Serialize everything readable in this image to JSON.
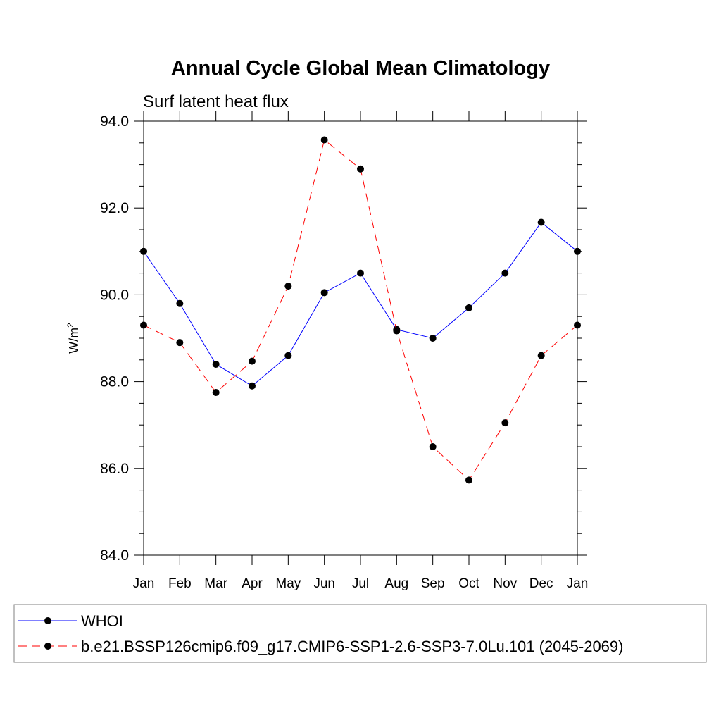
{
  "chart_data": {
    "type": "line",
    "title": "Annual Cycle Global Mean Climatology",
    "subtitle": "Surf latent heat flux",
    "ylabel": "W/m",
    "ylabel_sup": "2",
    "xlabel": "",
    "categories": [
      "Jan",
      "Feb",
      "Mar",
      "Apr",
      "May",
      "Jun",
      "Jul",
      "Aug",
      "Sep",
      "Oct",
      "Nov",
      "Dec",
      "Jan"
    ],
    "ylim": [
      84.0,
      94.0
    ],
    "yticks": [
      "84.0",
      "86.0",
      "88.0",
      "90.0",
      "92.0",
      "94.0"
    ],
    "ytick_values": [
      84,
      86,
      88,
      90,
      92,
      94
    ],
    "grid": false,
    "legend_position": "bottom",
    "series": [
      {
        "name": "WHOI",
        "color": "#0000ff",
        "dash": "solid",
        "values": [
          91.0,
          89.8,
          88.4,
          87.9,
          88.6,
          90.05,
          90.5,
          89.2,
          89.0,
          89.7,
          90.5,
          91.67,
          91.0
        ]
      },
      {
        "name": "b.e21.BSSP126cmip6.f09_g17.CMIP6-SSP1-2.6-SSP3-7.0Lu.101 (2045-2069)",
        "color": "#ff0000",
        "dash": "dashed",
        "values": [
          89.3,
          88.9,
          87.75,
          88.47,
          90.2,
          93.57,
          92.9,
          89.17,
          86.5,
          85.73,
          87.05,
          88.6,
          89.3
        ]
      }
    ]
  }
}
